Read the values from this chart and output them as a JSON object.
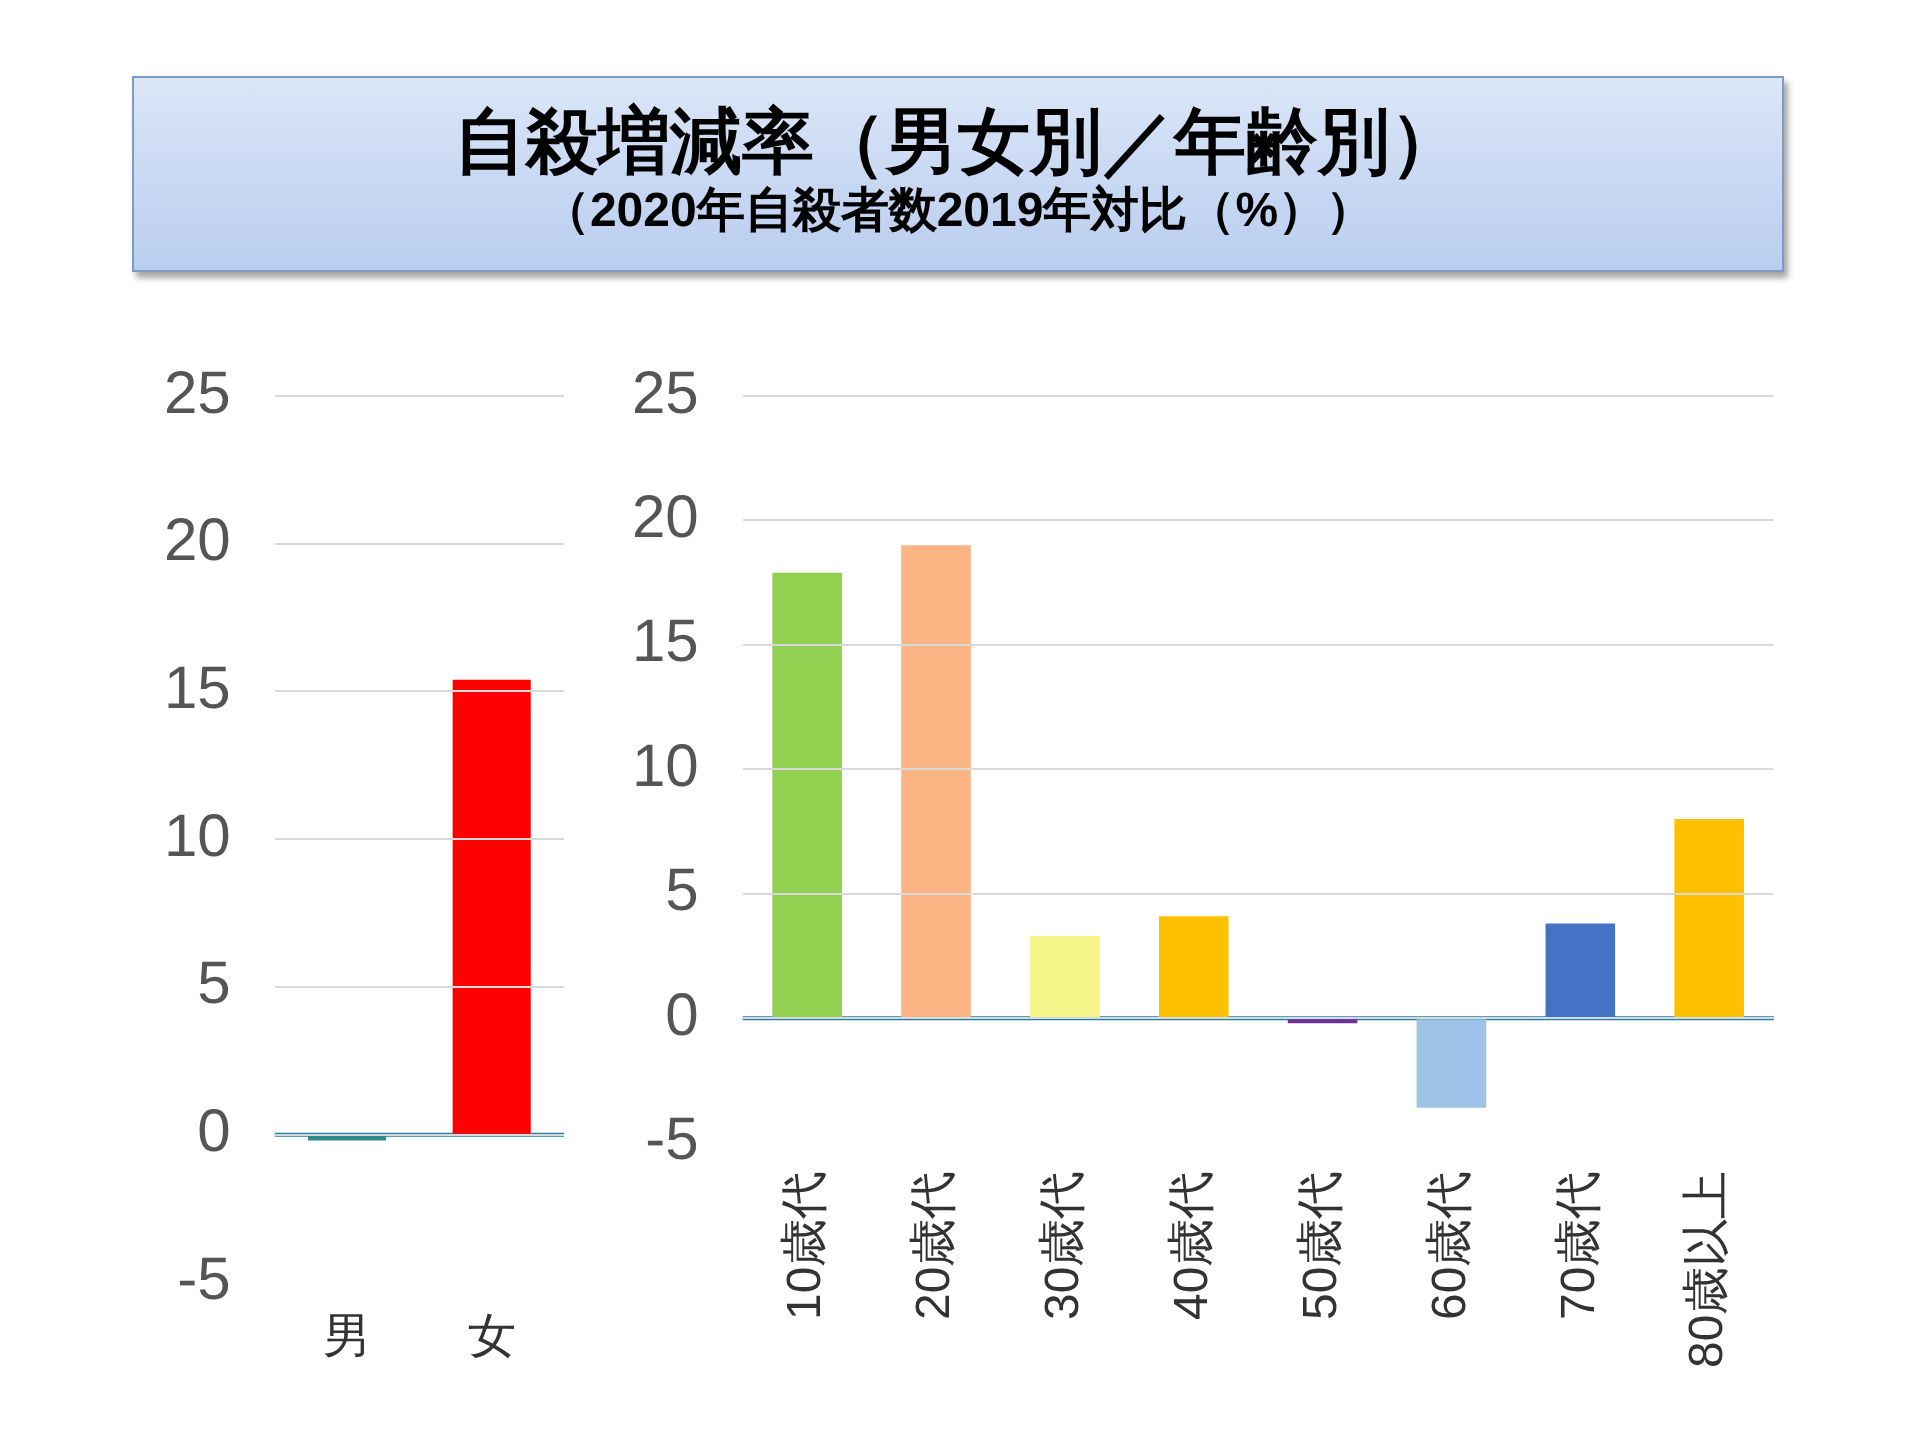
{
  "chart_data": [
    {
      "type": "bar",
      "categories": [
        "男",
        "女"
      ],
      "values": [
        -0.2,
        15.4
      ],
      "colors": [
        "#2e8b8b",
        "#ff0000"
      ],
      "ylim": [
        -5,
        25
      ],
      "yticks": [
        -5,
        0,
        5,
        10,
        15,
        20,
        25
      ],
      "grid": "y",
      "legend": false,
      "ref_lines": [
        {
          "axis": "y",
          "value": 0,
          "color": "#1f7fa8"
        }
      ]
    },
    {
      "type": "bar",
      "title": "自殺増減率（男女別／年齢別）",
      "subtitle": "（2020年自殺者数2019年対比（%））",
      "categories": [
        "10歳代",
        "20歳代",
        "30歳代",
        "40歳代",
        "50歳代",
        "60歳代",
        "70歳代",
        "80歳以上"
      ],
      "values": [
        17.9,
        19.0,
        3.3,
        4.1,
        -0.2,
        -3.6,
        3.8,
        8.0
      ],
      "colors": [
        "#92d050",
        "#fbb584",
        "#f5f58a",
        "#ffc000",
        "#7030a0",
        "#9dc3e6",
        "#4472c4",
        "#ffc000"
      ],
      "ylim": [
        -5,
        25
      ],
      "yticks": [
        -5,
        0,
        5,
        10,
        15,
        20,
        25
      ],
      "grid": "y",
      "legend": false,
      "ref_lines": [
        {
          "axis": "y",
          "value": 0,
          "color": "#1f7fa8"
        }
      ]
    }
  ]
}
